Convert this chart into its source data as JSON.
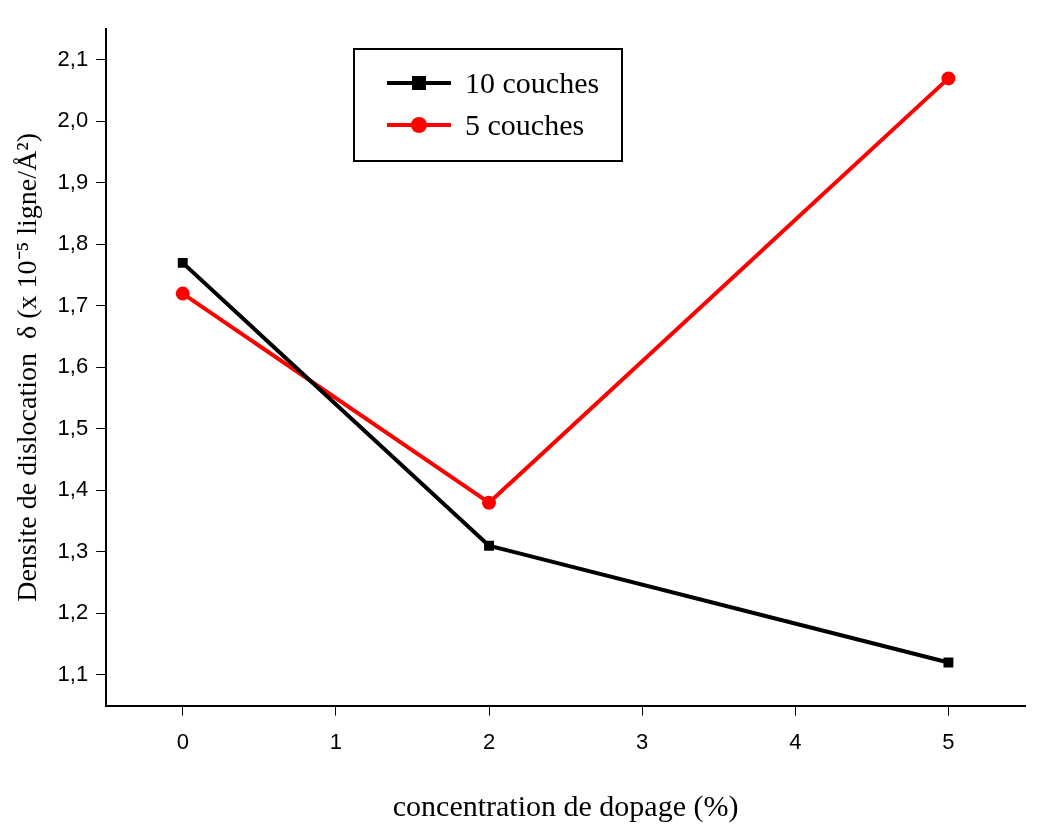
{
  "chart_data": {
    "type": "line",
    "xlabel": "concentration de dopage (%)",
    "ylabel": "Densite de dislocation  δ (x 10⁻⁵ ligne/Å²)",
    "x": [
      0,
      2,
      5
    ],
    "series": [
      {
        "name": "10 couches",
        "color": "#000000",
        "marker": "square",
        "values": [
          1.77,
          1.31,
          1.12
        ]
      },
      {
        "name": "5 couches",
        "color": "#ff0000",
        "marker": "circle",
        "values": [
          1.72,
          1.38,
          2.07
        ]
      }
    ],
    "xlim": [
      -0.5,
      5.5
    ],
    "xticks": [
      0,
      1,
      2,
      3,
      4,
      5
    ],
    "ylim": [
      1.05,
      2.15
    ],
    "yticks": [
      {
        "value": 1.1,
        "label": "1,1"
      },
      {
        "value": 1.2,
        "label": "1,2"
      },
      {
        "value": 1.3,
        "label": "1,3"
      },
      {
        "value": 1.4,
        "label": "1,4"
      },
      {
        "value": 1.5,
        "label": "1,5"
      },
      {
        "value": 1.6,
        "label": "1,6"
      },
      {
        "value": 1.7,
        "label": "1,7"
      },
      {
        "value": 1.8,
        "label": "1,8"
      },
      {
        "value": 1.9,
        "label": "1,9"
      },
      {
        "value": 2.0,
        "label": "2,0"
      },
      {
        "value": 2.1,
        "label": "2,1"
      }
    ],
    "grid": false,
    "legend": "top",
    "line_style": "solid"
  }
}
